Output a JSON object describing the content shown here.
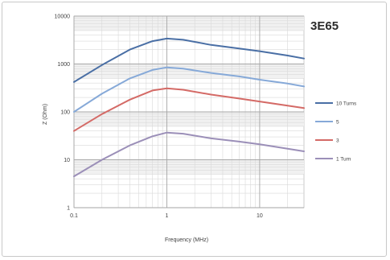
{
  "chart_data": {
    "type": "line",
    "title": "3E65",
    "xlabel": "Frequency (MHz)",
    "ylabel": "Z (Ohm)",
    "x_scale": "log",
    "y_scale": "log",
    "xlim": [
      0.1,
      30
    ],
    "ylim": [
      1,
      10000
    ],
    "x_ticks": [
      "0.1",
      "1",
      "10"
    ],
    "y_ticks": [
      "1",
      "10",
      "100",
      "1000",
      "10000"
    ],
    "grid": true,
    "legend_position": "right",
    "series": [
      {
        "name": "10 Turns",
        "color": "#4a6fa5",
        "x": [
          0.1,
          0.2,
          0.4,
          0.7,
          1,
          1.5,
          3,
          6,
          10,
          20,
          30
        ],
        "y": [
          420,
          950,
          2000,
          3000,
          3400,
          3200,
          2500,
          2100,
          1850,
          1500,
          1300
        ]
      },
      {
        "name": "5",
        "color": "#86a9d8",
        "x": [
          0.1,
          0.2,
          0.4,
          0.7,
          1,
          1.5,
          3,
          6,
          10,
          20,
          30
        ],
        "y": [
          100,
          240,
          500,
          750,
          850,
          800,
          650,
          550,
          470,
          390,
          340
        ]
      },
      {
        "name": "3",
        "color": "#d46a66",
        "x": [
          0.1,
          0.2,
          0.4,
          0.7,
          1,
          1.5,
          3,
          6,
          10,
          20,
          30
        ],
        "y": [
          40,
          90,
          180,
          280,
          310,
          290,
          230,
          190,
          165,
          135,
          120
        ]
      },
      {
        "name": "1 Turn",
        "color": "#9b8fb8",
        "x": [
          0.1,
          0.2,
          0.4,
          0.7,
          1,
          1.5,
          3,
          6,
          10,
          20,
          30
        ],
        "y": [
          4.5,
          10,
          20,
          31,
          37,
          35,
          28,
          24,
          21,
          17,
          15
        ]
      }
    ]
  }
}
